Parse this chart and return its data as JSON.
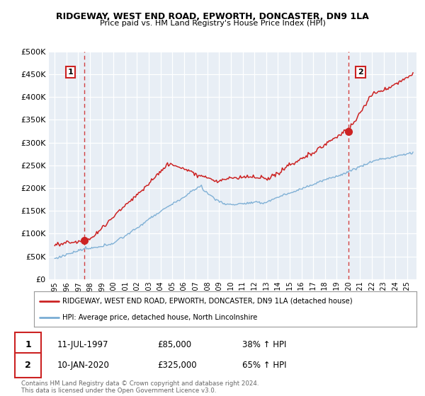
{
  "title": "RIDGEWAY, WEST END ROAD, EPWORTH, DONCASTER, DN9 1LA",
  "subtitle": "Price paid vs. HM Land Registry's House Price Index (HPI)",
  "legend_entries": [
    "RIDGEWAY, WEST END ROAD, EPWORTH, DONCASTER, DN9 1LA (detached house)",
    "HPI: Average price, detached house, North Lincolnshire"
  ],
  "annotation1": {
    "label": "1",
    "date_x": 1997.53,
    "y": 85000,
    "date_str": "11-JUL-1997",
    "price": "£85,000",
    "change": "38% ↑ HPI"
  },
  "annotation2": {
    "label": "2",
    "date_x": 2020.03,
    "y": 325000,
    "date_str": "10-JAN-2020",
    "price": "£325,000",
    "change": "65% ↑ HPI"
  },
  "footer": "Contains HM Land Registry data © Crown copyright and database right 2024.\nThis data is licensed under the Open Government Licence v3.0.",
  "plot_bg": "#e8eef5",
  "red_color": "#cc2222",
  "blue_color": "#7aadd4",
  "ylim": [
    0,
    500000
  ],
  "yticks": [
    0,
    50000,
    100000,
    150000,
    200000,
    250000,
    300000,
    350000,
    400000,
    450000,
    500000
  ],
  "xlim_left": 1994.5,
  "xlim_right": 2025.8
}
